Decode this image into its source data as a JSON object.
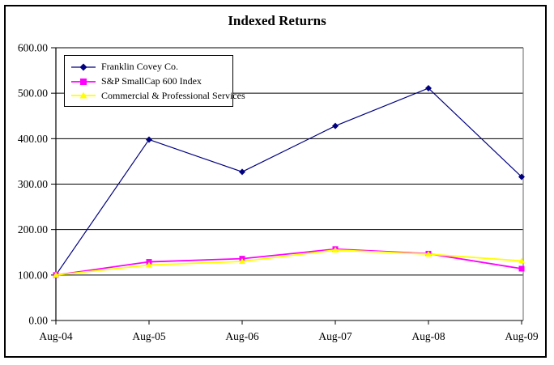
{
  "chart_data": {
    "type": "line",
    "title": "Indexed Returns",
    "categories": [
      "Aug-04",
      "Aug-05",
      "Aug-06",
      "Aug-07",
      "Aug-08",
      "Aug-09"
    ],
    "series": [
      {
        "name": "Franklin Covey Co.",
        "color": "#000080",
        "marker": "diamond",
        "line_width": 1.2,
        "values": [
          100,
          398,
          327,
          428,
          511,
          316
        ]
      },
      {
        "name": "S&P SmallCap 600 Index",
        "color": "#FF00FF",
        "marker": "square",
        "line_width": 1.8,
        "values": [
          100,
          129,
          136,
          157,
          147,
          114
        ]
      },
      {
        "name": "Commercial & Professional Services",
        "color": "#FFFF00",
        "marker": "triangle",
        "line_width": 1.8,
        "values": [
          100,
          122,
          130,
          155,
          146,
          131
        ]
      }
    ],
    "ylim": [
      0,
      600
    ],
    "ytick_step": 100,
    "ytick_labels": [
      "0.00",
      "100.00",
      "200.00",
      "300.00",
      "400.00",
      "500.00",
      "600.00"
    ],
    "grid": "horizontal",
    "legend_position": "top-left",
    "colors": {
      "gridline": "#000000",
      "axis": "#000000",
      "plot_right_border": "#808080",
      "text": "#000000"
    }
  }
}
